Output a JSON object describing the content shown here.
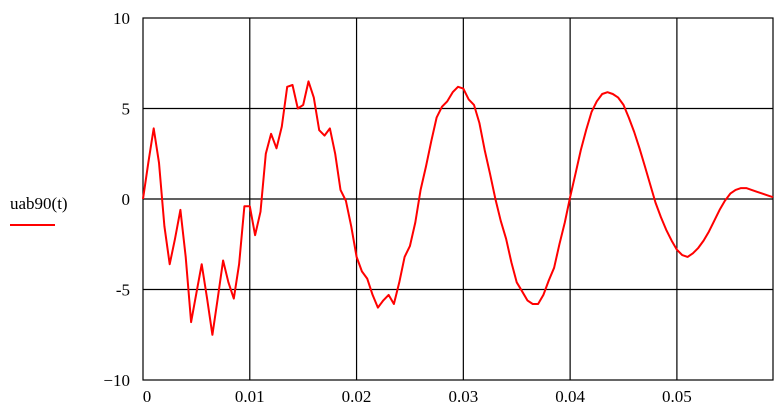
{
  "chart_data": {
    "type": "line",
    "title": "",
    "xlabel": "",
    "ylabel": "",
    "xlim": [
      0,
      0.059
    ],
    "ylim": [
      -10,
      10
    ],
    "grid": true,
    "legend_placement": "left",
    "x_ticks": [
      0,
      0.01,
      0.02,
      0.03,
      0.04,
      0.05
    ],
    "x_tick_labels": [
      "0",
      "0.01",
      "0.02",
      "0.03",
      "0.04",
      "0.05"
    ],
    "y_ticks": [
      10,
      5,
      0,
      -5,
      -10
    ],
    "y_tick_labels": [
      "10",
      "5",
      "0",
      "-5",
      "−10"
    ],
    "series": [
      {
        "name": "uab90(t)",
        "color": "#ff0000",
        "x": [
          0,
          0.0005,
          0.001,
          0.0015,
          0.002,
          0.0025,
          0.003,
          0.0035,
          0.004,
          0.0045,
          0.005,
          0.0055,
          0.006,
          0.0065,
          0.007,
          0.0075,
          0.008,
          0.0085,
          0.009,
          0.0095,
          0.01,
          0.0105,
          0.011,
          0.0115,
          0.012,
          0.0125,
          0.013,
          0.0135,
          0.014,
          0.0145,
          0.015,
          0.0155,
          0.016,
          0.0165,
          0.017,
          0.0175,
          0.018,
          0.0185,
          0.019,
          0.0195,
          0.02,
          0.0205,
          0.021,
          0.0215,
          0.022,
          0.0225,
          0.023,
          0.0235,
          0.024,
          0.0245,
          0.025,
          0.0255,
          0.026,
          0.0265,
          0.027,
          0.0275,
          0.028,
          0.0285,
          0.029,
          0.0295,
          0.03,
          0.0305,
          0.031,
          0.0315,
          0.032,
          0.0325,
          0.033,
          0.0335,
          0.034,
          0.0345,
          0.035,
          0.0355,
          0.036,
          0.0365,
          0.037,
          0.0375,
          0.038,
          0.0385,
          0.039,
          0.0395,
          0.04,
          0.0405,
          0.041,
          0.0415,
          0.042,
          0.0425,
          0.043,
          0.0435,
          0.044,
          0.0445,
          0.045,
          0.0455,
          0.046,
          0.0465,
          0.047,
          0.0475,
          0.048,
          0.0485,
          0.049,
          0.0495,
          0.05,
          0.0505,
          0.051,
          0.0515,
          0.052,
          0.0525,
          0.053,
          0.0535,
          0.054,
          0.0545,
          0.055,
          0.0555,
          0.056,
          0.0565,
          0.057,
          0.0575,
          0.058,
          0.0585,
          0.059
        ],
        "y": [
          0,
          2.0,
          3.9,
          2.0,
          -1.5,
          -3.6,
          -2.2,
          -0.6,
          -3.2,
          -6.8,
          -5.2,
          -3.6,
          -5.5,
          -7.5,
          -5.5,
          -3.4,
          -4.6,
          -5.5,
          -3.6,
          -0.4,
          -0.4,
          -2.0,
          -0.7,
          2.5,
          3.6,
          2.8,
          4.0,
          6.2,
          6.3,
          5.0,
          5.2,
          6.5,
          5.6,
          3.8,
          3.5,
          3.9,
          2.5,
          0.5,
          -0.1,
          -1.5,
          -3.2,
          -4.0,
          -4.4,
          -5.3,
          -6.0,
          -5.6,
          -5.3,
          -5.8,
          -4.6,
          -3.2,
          -2.6,
          -1.3,
          0.5,
          1.8,
          3.2,
          4.5,
          5.1,
          5.4,
          5.9,
          6.2,
          6.1,
          5.5,
          5.2,
          4.2,
          2.7,
          1.4,
          0.0,
          -1.2,
          -2.2,
          -3.5,
          -4.6,
          -5.1,
          -5.6,
          -5.8,
          -5.8,
          -5.3,
          -4.5,
          -3.8,
          -2.5,
          -1.3,
          0.1,
          1.4,
          2.7,
          3.8,
          4.8,
          5.4,
          5.8,
          5.9,
          5.8,
          5.6,
          5.2,
          4.5,
          3.7,
          2.8,
          1.8,
          0.8,
          -0.2,
          -1.0,
          -1.7,
          -2.3,
          -2.8,
          -3.1,
          -3.2,
          -3.0,
          -2.7,
          -2.3,
          -1.8,
          -1.2,
          -0.6,
          -0.1,
          0.3,
          0.5,
          0.6,
          0.6,
          0.5,
          0.4,
          0.3,
          0.2,
          0.1
        ]
      }
    ]
  }
}
